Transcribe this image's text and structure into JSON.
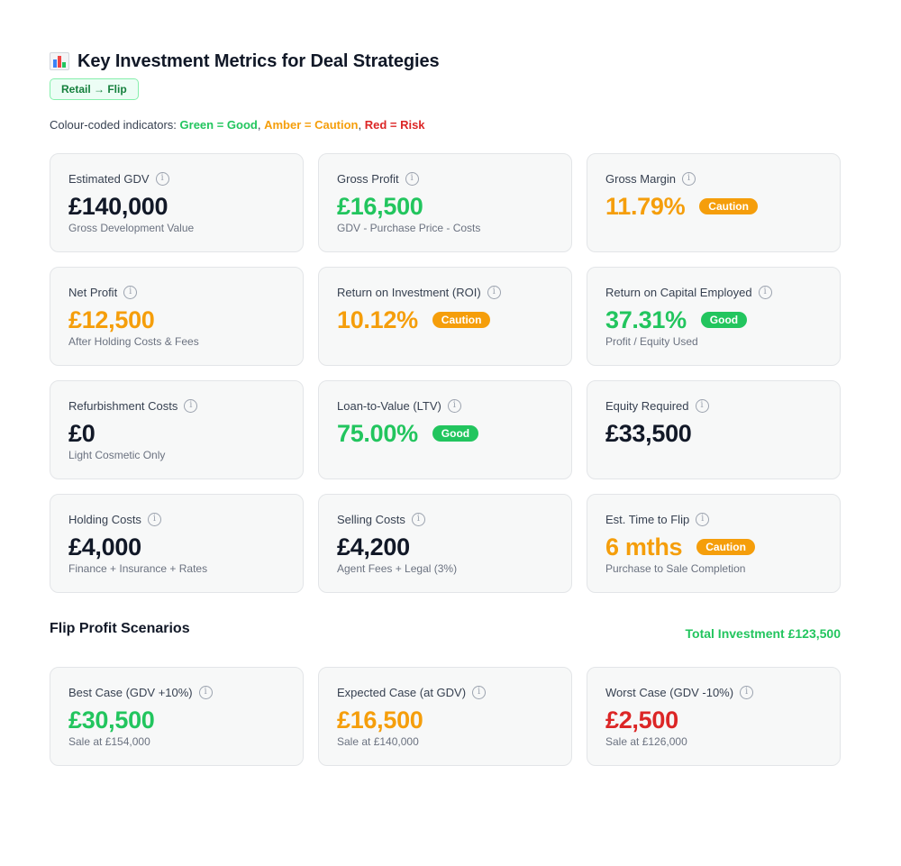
{
  "header": {
    "title": "Key Investment Metrics for Deal Strategies",
    "icon": "bar-chart-icon",
    "strategy": "Retail → Flip"
  },
  "legend": {
    "prefix": "Colour-coded indicators: ",
    "good": "Green = Good",
    "caution": "Amber = Caution",
    "risk": "Red = Risk",
    "sep": ", "
  },
  "colors": {
    "good": "#22c55e",
    "caution": "#f59e0b",
    "risk": "#dc2626",
    "neutral": "#111827"
  },
  "metrics": [
    {
      "label": "Estimated GDV",
      "value": "£140,000",
      "tone": "neutral",
      "sub": "Gross Development Value",
      "status": ""
    },
    {
      "label": "Gross Profit",
      "value": "£16,500",
      "tone": "good",
      "sub": "GDV - Purchase Price - Costs",
      "status": ""
    },
    {
      "label": "Gross Margin",
      "value": "11.79%",
      "tone": "amber",
      "sub": "",
      "status": "Caution"
    },
    {
      "label": "Net Profit",
      "value": "£12,500",
      "tone": "amber",
      "sub": "After Holding Costs & Fees",
      "status": ""
    },
    {
      "label": "Return on Investment (ROI)",
      "value": "10.12%",
      "tone": "amber",
      "sub": "",
      "status": "Caution"
    },
    {
      "label": "Return on Capital Employed",
      "value": "37.31%",
      "tone": "good",
      "sub": "Profit / Equity Used",
      "status": "Good"
    },
    {
      "label": "Refurbishment Costs",
      "value": "£0",
      "tone": "neutral",
      "sub": "Light Cosmetic Only",
      "status": ""
    },
    {
      "label": "Loan-to-Value (LTV)",
      "value": "75.00%",
      "tone": "good",
      "sub": "",
      "status": "Good"
    },
    {
      "label": "Equity Required",
      "value": "£33,500",
      "tone": "neutral",
      "sub": "",
      "status": ""
    },
    {
      "label": "Holding Costs",
      "value": "£4,000",
      "tone": "neutral",
      "sub": "Finance + Insurance + Rates",
      "status": ""
    },
    {
      "label": "Selling Costs",
      "value": "£4,200",
      "tone": "neutral",
      "sub": "Agent Fees + Legal (3%)",
      "status": ""
    },
    {
      "label": "Est. Time to Flip",
      "value": "6 mths",
      "tone": "amber",
      "sub": "Purchase to Sale Completion",
      "status": "Caution"
    }
  ],
  "scenarios_section": {
    "title": "Flip Profit Scenarios",
    "total": "Total Investment £123,500"
  },
  "scenarios": [
    {
      "label": "Best Case (GDV +10%)",
      "value": "£30,500",
      "tone": "good",
      "sub": "Sale at £154,000",
      "status": ""
    },
    {
      "label": "Expected Case (at GDV)",
      "value": "£16,500",
      "tone": "amber",
      "sub": "Sale at £140,000",
      "status": ""
    },
    {
      "label": "Worst Case (GDV -10%)",
      "value": "£2,500",
      "tone": "risk",
      "sub": "Sale at £126,000",
      "status": ""
    }
  ]
}
